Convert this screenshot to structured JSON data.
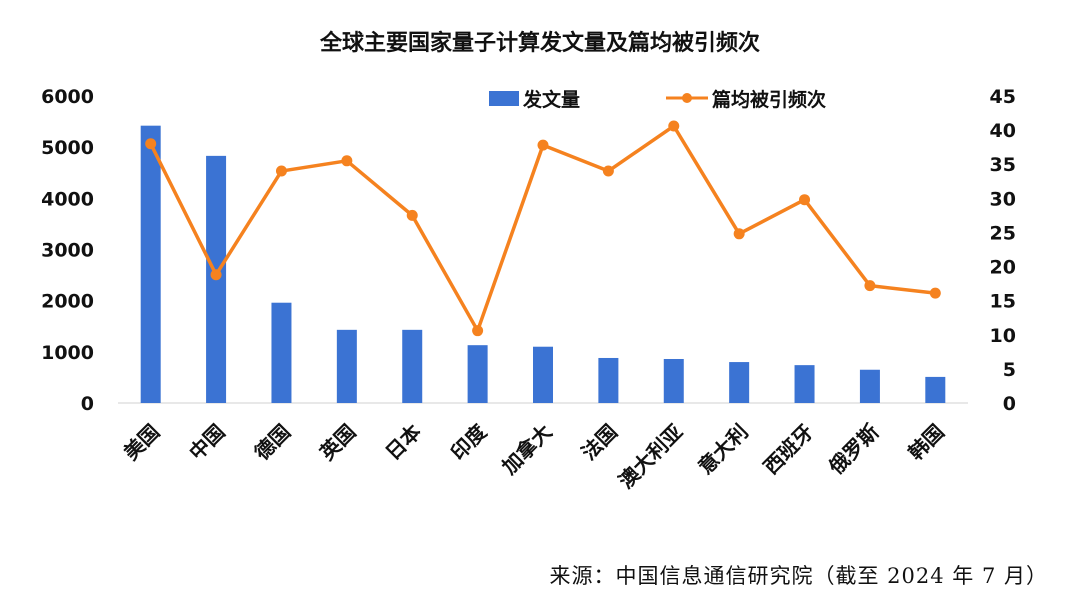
{
  "source_note": "来源：中国信息通信研究院（截至 2024 年 7 月）",
  "colors": {
    "bar": "#3b73d3",
    "line": "#f5821f"
  },
  "chart_data": {
    "type": "bar",
    "title": "全球主要国家量子计算发文量及篇均被引频次",
    "categories": [
      "美国",
      "中国",
      "德国",
      "英国",
      "日本",
      "印度",
      "加拿大",
      "法国",
      "澳大利亚",
      "意大利",
      "西班牙",
      "俄罗斯",
      "韩国"
    ],
    "series": [
      {
        "name": "发文量",
        "type": "bar",
        "axis": "left",
        "values": [
          5420,
          4830,
          1960,
          1430,
          1430,
          1130,
          1100,
          880,
          860,
          800,
          740,
          650,
          510
        ]
      },
      {
        "name": "篇均被引频次",
        "type": "line",
        "axis": "right",
        "values": [
          38.0,
          18.8,
          34.0,
          35.5,
          27.5,
          10.6,
          37.8,
          34.0,
          40.6,
          24.8,
          29.8,
          17.2,
          16.1
        ]
      }
    ],
    "y_left": {
      "ylim": [
        0,
        6000
      ],
      "ticks": [
        0,
        1000,
        2000,
        3000,
        4000,
        5000,
        6000
      ]
    },
    "y_right": {
      "ylim": [
        0,
        45
      ],
      "ticks": [
        0,
        5,
        10,
        15,
        20,
        25,
        30,
        35,
        40,
        45
      ]
    },
    "legend_position": "top-center",
    "grid": false
  }
}
